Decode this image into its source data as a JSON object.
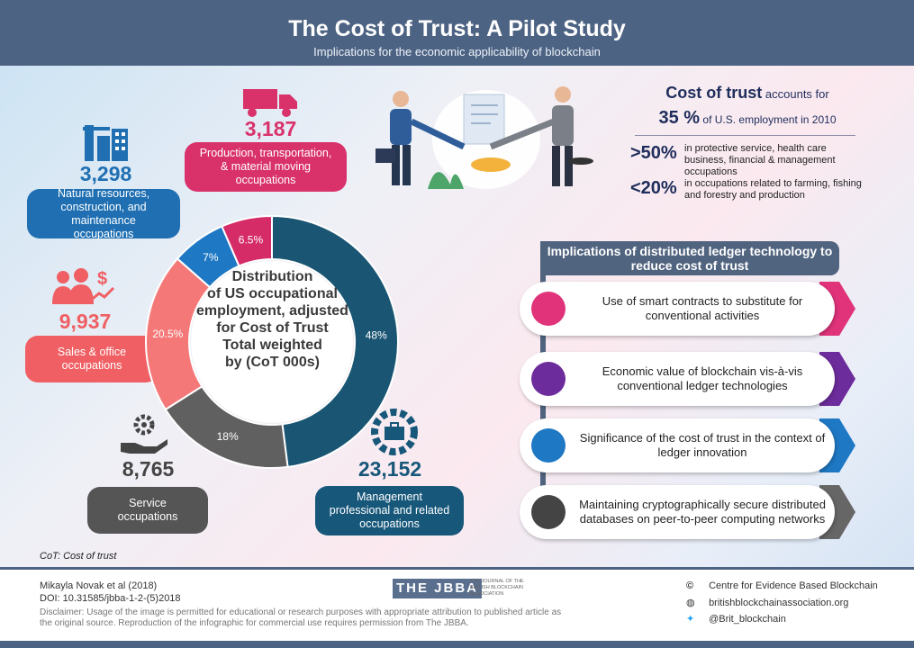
{
  "header": {
    "title": "The Cost of Trust: A Pilot Study",
    "subtitle": "Implications for the economic applicability of blockchain"
  },
  "occupations": [
    {
      "value": "3,298",
      "label": "Natural resources, construction, and maintenance occupations",
      "color": "#1f6fb2",
      "icon": "industry-icon"
    },
    {
      "value": "3,187",
      "label": "Production, transportation, & material moving occupations",
      "color": "#d9326b",
      "icon": "truck-icon"
    },
    {
      "value": "9,937",
      "label": "Sales & office occupations",
      "color": "#ef5f63",
      "icon": "sales-people-icon"
    },
    {
      "value": "8,765",
      "label": "Service occupations",
      "color": "#555555",
      "icon": "service-hand-icon"
    },
    {
      "value": "23,152",
      "label": "Management professional and related occupations",
      "color": "#17577a",
      "icon": "briefcase-gear-icon"
    }
  ],
  "donut": {
    "center_lines": [
      "Distribution",
      "of US occupational",
      "employment, adjusted",
      "for Cost of Trust",
      "Total weighted",
      "by (CoT 000s)"
    ],
    "segments": [
      {
        "label": "48%",
        "value": 48,
        "color": "#1a5673"
      },
      {
        "label": "18%",
        "value": 18,
        "color": "#606060"
      },
      {
        "label": "20.5%",
        "value": 20.5,
        "color": "#f57878"
      },
      {
        "label": "7%",
        "value": 7,
        "color": "#1f78c4"
      },
      {
        "label": "6.5%",
        "value": 6.5,
        "color": "#d52b66"
      }
    ]
  },
  "cost_of_trust": {
    "line1_bold": "Cost of trust",
    "line1_rest": " accounts for",
    "line2_bold": "35 %",
    "line2_rest": " of U.S. employment in 2010",
    "stats": [
      {
        "num": ">50%",
        "text": "in protective service, health care business, financial & management occupations"
      },
      {
        "num": "<20%",
        "text": "in occupations related to farming, fishing and forestry and production"
      }
    ]
  },
  "implications": {
    "title": "Implications of distributed ledger technology to reduce cost of trust",
    "items": [
      {
        "text": "Use of smart contracts  to substitute for conventional activities",
        "color": "#e0337a"
      },
      {
        "text": "Economic value of  blockchain vis-à-vis conventional ledger technologies",
        "color": "#6d2c9c"
      },
      {
        "text": "Significance of the cost of trust  in the context of ledger innovation",
        "color": "#1f78c4"
      },
      {
        "text": "Maintaining cryptographically secure distributed  databases on peer-to-peer computing networks",
        "color": "#444444"
      }
    ]
  },
  "footnote": "CoT: Cost of trust",
  "footer": {
    "author": "Mikayla Novak et al (2018)",
    "doi": "DOI: 10.31585/jbba-1-2-(5)2018",
    "disclaimer": "Disclaimer: Usage of the image is permitted for educational or research purposes with appropriate attribution to published article as the original source. Reproduction of the infographic for commercial use requires permission from The JBBA.",
    "logo_letters": "THE JBBA",
    "logo_tag": "THE JOURNAL OF THE BRITISH BLOCKCHAIN ASSOCIATION",
    "copyright": "Centre for Evidence Based Blockchain",
    "website": "britishblockchainassociation.org",
    "twitter": "@Brit_blockchain"
  }
}
